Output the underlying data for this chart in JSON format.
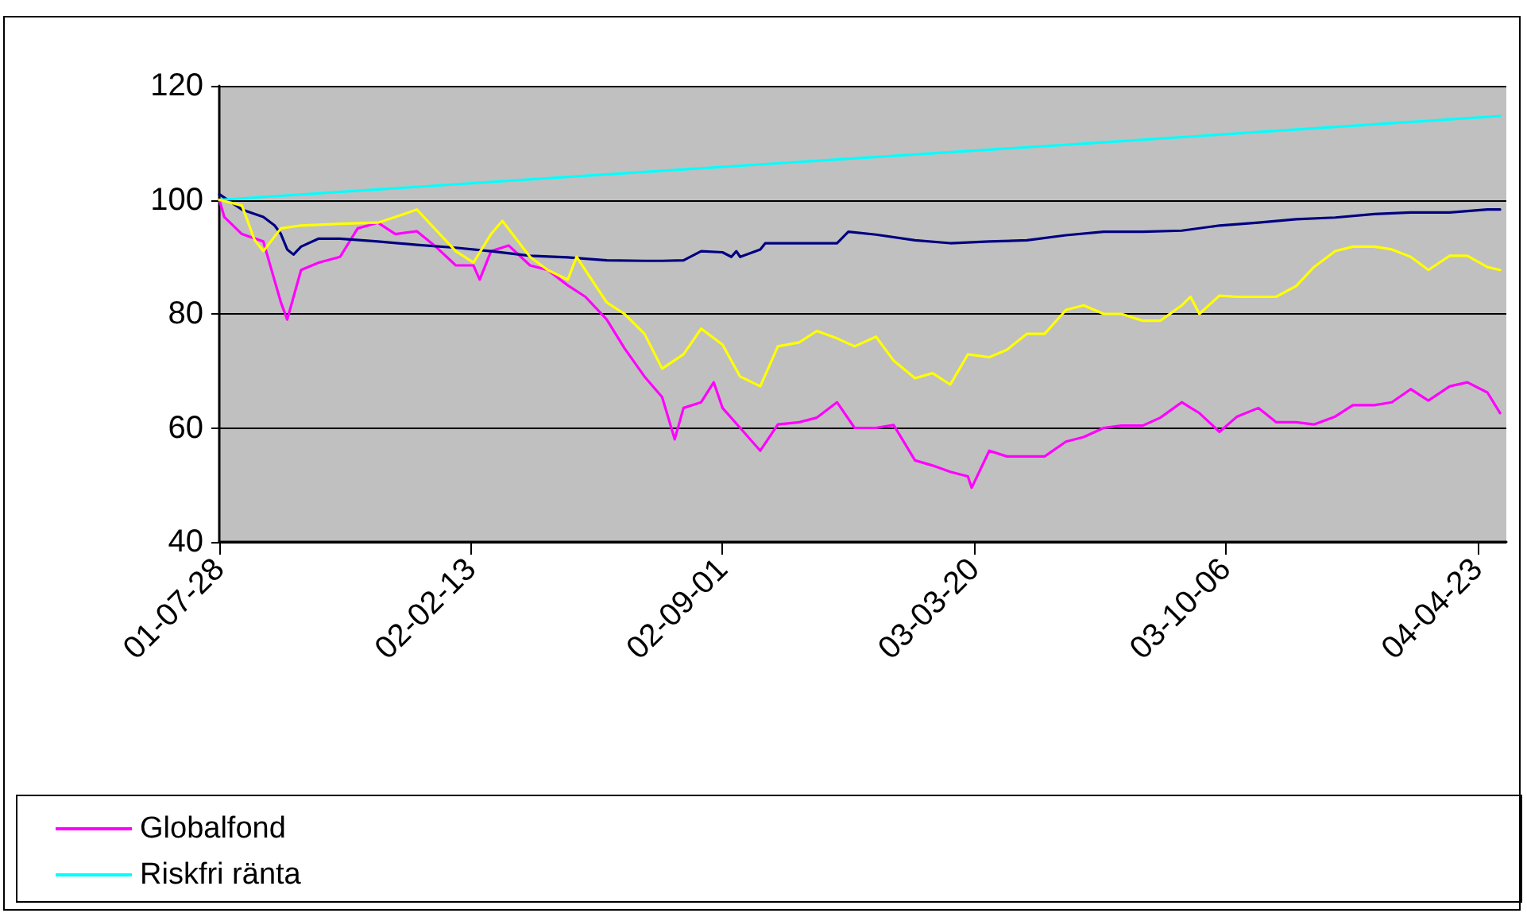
{
  "chart_data": {
    "type": "line",
    "xlim": [
      "2001-07-28",
      "2004-05-16"
    ],
    "ylim": [
      40,
      120
    ],
    "yticks": [
      40,
      60,
      80,
      100,
      120
    ],
    "xticks": [
      {
        "value": "2001-07-28",
        "label": "01-07-28"
      },
      {
        "value": "2002-02-13",
        "label": "02-02-13"
      },
      {
        "value": "2002-09-01",
        "label": "02-09-01"
      },
      {
        "value": "2003-03-20",
        "label": "03-03-20"
      },
      {
        "value": "2003-10-06",
        "label": "03-10-06"
      },
      {
        "value": "2004-04-23",
        "label": "04-04-23"
      }
    ],
    "grid": "y",
    "legend": "bottom",
    "marker": "none",
    "line_style": "solid",
    "series": [
      {
        "name": "Globalfond",
        "color": "#ff00ff",
        "x": [
          "2001-07-28",
          "2001-08-01",
          "2001-08-15",
          "2001-09-01",
          "2001-09-15",
          "2001-09-20",
          "2001-10-01",
          "2001-10-15",
          "2001-11-01",
          "2001-11-15",
          "2001-12-01",
          "2001-12-15",
          "2002-01-01",
          "2002-01-15",
          "2002-02-01",
          "2002-02-15",
          "2002-02-20",
          "2002-03-01",
          "2002-03-15",
          "2002-04-01",
          "2002-04-15",
          "2002-05-01",
          "2002-05-15",
          "2002-06-01",
          "2002-06-15",
          "2002-07-01",
          "2002-07-15",
          "2002-07-25",
          "2002-08-01",
          "2002-08-15",
          "2002-08-25",
          "2002-09-01",
          "2002-09-15",
          "2002-10-01",
          "2002-10-15",
          "2002-11-01",
          "2002-11-15",
          "2002-12-01",
          "2002-12-15",
          "2003-01-01",
          "2003-01-15",
          "2003-02-01",
          "2003-02-15",
          "2003-03-01",
          "2003-03-15",
          "2003-03-18",
          "2003-04-01",
          "2003-04-15",
          "2003-05-01",
          "2003-05-15",
          "2003-06-01",
          "2003-06-15",
          "2003-07-01",
          "2003-07-15",
          "2003-08-01",
          "2003-08-15",
          "2003-09-01",
          "2003-09-15",
          "2003-10-01",
          "2003-10-15",
          "2003-11-01",
          "2003-11-15",
          "2003-12-01",
          "2003-12-15",
          "2004-01-01",
          "2004-01-15",
          "2004-02-01",
          "2004-02-15",
          "2004-03-01",
          "2004-03-15",
          "2004-04-01",
          "2004-04-15",
          "2004-05-01",
          "2004-05-11"
        ],
        "values": [
          100,
          97,
          94,
          92.7,
          82,
          79,
          87.7,
          89,
          90,
          95,
          96,
          94,
          94.5,
          92,
          88.5,
          88.5,
          86,
          91,
          92,
          88.5,
          87.7,
          85,
          83,
          79,
          74,
          69,
          65.4,
          58,
          63.5,
          64.5,
          68,
          63.5,
          60,
          56,
          60.6,
          61,
          61.8,
          64.5,
          60,
          60,
          60.5,
          54.3,
          53.4,
          52.3,
          51.5,
          49.5,
          56,
          55,
          55,
          55,
          57.6,
          58.4,
          60,
          60.4,
          60.4,
          61.8,
          64.5,
          62.6,
          59.3,
          62,
          63.5,
          61,
          61,
          60.6,
          62,
          64,
          64,
          64.5,
          66.8,
          64.8,
          67.3,
          68,
          66.2,
          62.6
        ]
      },
      {
        "color": "#000080",
        "x": [
          "2001-07-28",
          "2001-08-15",
          "2001-09-01",
          "2001-09-10",
          "2001-09-15",
          "2001-09-20",
          "2001-09-25",
          "2001-10-01",
          "2001-10-15",
          "2001-11-01",
          "2001-12-01",
          "2002-01-01",
          "2002-02-01",
          "2002-03-01",
          "2002-04-01",
          "2002-05-01",
          "2002-06-01",
          "2002-07-01",
          "2002-07-15",
          "2002-08-01",
          "2002-08-15",
          "2002-09-01",
          "2002-09-08",
          "2002-09-12",
          "2002-09-15",
          "2002-10-01",
          "2002-10-05",
          "2002-12-01",
          "2002-12-10",
          "2003-01-01",
          "2003-02-01",
          "2003-03-01",
          "2003-04-01",
          "2003-05-01",
          "2003-06-01",
          "2003-07-01",
          "2003-08-01",
          "2003-09-01",
          "2003-10-01",
          "2003-11-01",
          "2003-12-01",
          "2004-01-01",
          "2004-02-01",
          "2004-03-01",
          "2004-04-01",
          "2004-05-01",
          "2004-05-11"
        ],
        "values": [
          101,
          98.3,
          97,
          95.5,
          94,
          91.3,
          90.4,
          91.8,
          93.2,
          93.2,
          92.7,
          92.1,
          91.6,
          91,
          90.2,
          89.9,
          89.4,
          89.3,
          89.3,
          89.4,
          91,
          90.8,
          90,
          91,
          90,
          91.3,
          92.4,
          92.4,
          94.4,
          93.9,
          92.9,
          92.4,
          92.7,
          92.9,
          93.8,
          94.4,
          94.4,
          94.6,
          95.5,
          96,
          96.6,
          96.9,
          97.5,
          97.8,
          97.8,
          98.3,
          98.3
        ]
      },
      {
        "name": "Riskfri ränta",
        "color": "#00ffff",
        "x": [
          "2001-07-28",
          "2002-07-01",
          "2003-07-01",
          "2004-05-11"
        ],
        "values": [
          100,
          104.9,
          110.1,
          114.7
        ]
      },
      {
        "color": "#ffff00",
        "x": [
          "2001-07-28",
          "2001-08-15",
          "2001-08-25",
          "2001-09-01",
          "2001-09-15",
          "2001-10-01",
          "2001-11-01",
          "2001-12-01",
          "2001-12-15",
          "2002-01-01",
          "2002-01-15",
          "2002-02-01",
          "2002-02-15",
          "2002-03-01",
          "2002-03-10",
          "2002-04-01",
          "2002-04-15",
          "2002-05-01",
          "2002-05-08",
          "2002-06-01",
          "2002-06-15",
          "2002-07-01",
          "2002-07-15",
          "2002-08-01",
          "2002-08-15",
          "2002-09-01",
          "2002-09-15",
          "2002-10-01",
          "2002-10-15",
          "2002-11-01",
          "2002-11-15",
          "2002-12-01",
          "2002-12-15",
          "2003-01-01",
          "2003-01-15",
          "2003-02-01",
          "2003-02-15",
          "2003-03-01",
          "2003-03-15",
          "2003-04-01",
          "2003-04-15",
          "2003-05-01",
          "2003-05-15",
          "2003-06-01",
          "2003-06-15",
          "2003-07-01",
          "2003-07-15",
          "2003-08-01",
          "2003-08-15",
          "2003-09-01",
          "2003-09-08",
          "2003-09-15",
          "2003-10-01",
          "2003-10-15",
          "2003-11-01",
          "2003-11-15",
          "2003-12-01",
          "2003-12-15",
          "2004-01-01",
          "2004-01-15",
          "2004-02-01",
          "2004-02-15",
          "2004-03-01",
          "2004-03-15",
          "2004-04-01",
          "2004-04-15",
          "2004-05-01",
          "2004-05-11"
        ],
        "values": [
          100,
          99,
          93,
          91,
          95,
          95.5,
          95.8,
          96,
          97,
          98.3,
          95,
          91,
          89,
          94,
          96.3,
          90,
          87.7,
          86,
          90,
          82,
          80,
          76.5,
          70.4,
          72.9,
          77.4,
          74.6,
          69,
          67.3,
          74.3,
          75,
          77,
          75.7,
          74.3,
          76,
          71.8,
          68.7,
          69.6,
          67.6,
          72.9,
          72.4,
          73.7,
          76.5,
          76.5,
          80.7,
          81.5,
          80,
          80,
          78.8,
          78.8,
          81.5,
          83,
          80,
          83.2,
          83,
          83,
          83,
          84.9,
          88.2,
          91,
          91.8,
          91.8,
          91.3,
          90,
          87.7,
          90.2,
          90.2,
          88.2,
          87.7
        ]
      }
    ]
  }
}
